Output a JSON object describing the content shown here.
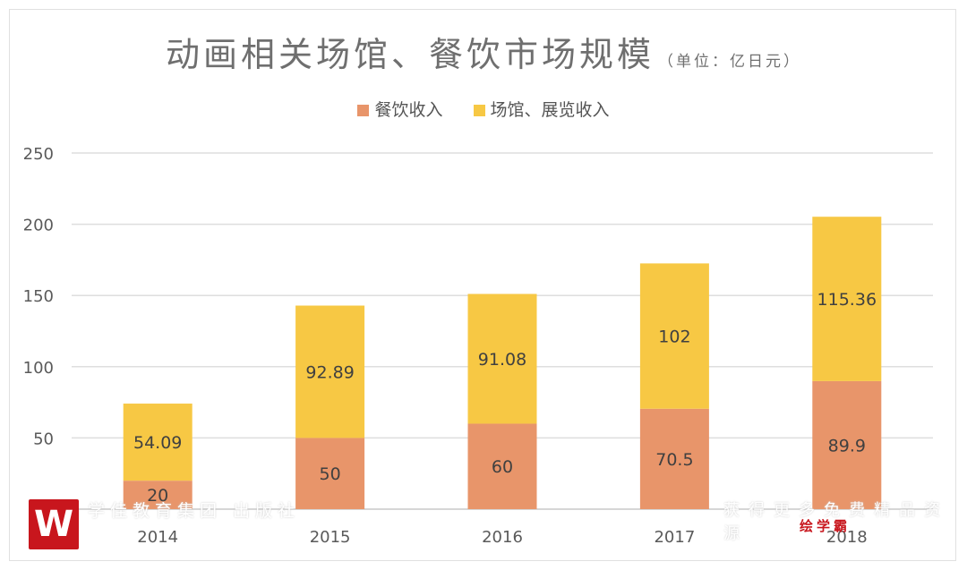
{
  "chart_data": {
    "type": "bar",
    "stacked": true,
    "title": "动画相关场馆、餐饮市场规模",
    "subtitle": "（单位：亿日元）",
    "categories": [
      "2014",
      "2015",
      "2016",
      "2017",
      "2018"
    ],
    "series": [
      {
        "name": "餐饮收入",
        "values": [
          20,
          50,
          60,
          70.5,
          89.9
        ],
        "labels": [
          "20",
          "50",
          "60",
          "70.5",
          "89.9"
        ],
        "color": "#e8956a"
      },
      {
        "name": "场馆、展览收入",
        "values": [
          54.09,
          92.89,
          91.08,
          102,
          115.36
        ],
        "labels": [
          "54.09",
          "92.89",
          "91.08",
          "102",
          "115.36"
        ],
        "color": "#f7c844"
      }
    ],
    "ylim": [
      0,
      250
    ],
    "yticks": [
      "50",
      "100",
      "150",
      "200",
      "250"
    ],
    "grid": true,
    "legend_position": "top"
  },
  "watermark": {
    "logo_letter": "W",
    "left_text": "学佳教育集团 出版社",
    "right_text": "获得更多免费精品资源",
    "brand": "绘学霸"
  }
}
